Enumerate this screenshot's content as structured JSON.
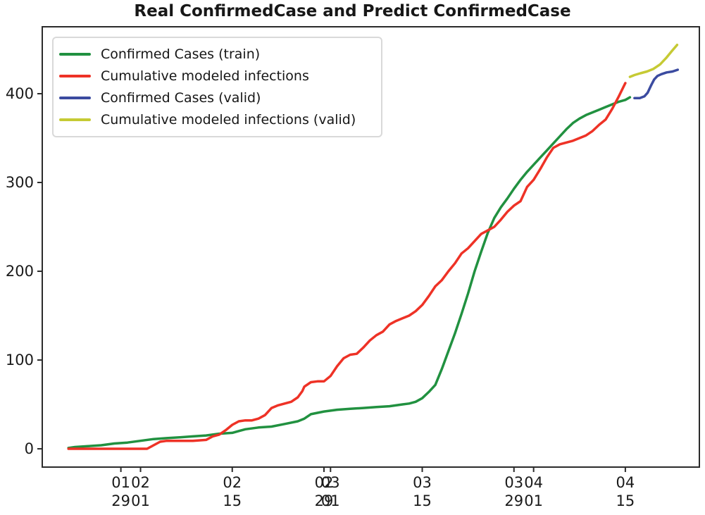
{
  "figure": {
    "background": "#ffffff",
    "frame_color": "#2b2b2b",
    "text_color": "#1a1a1a"
  },
  "chart_data": {
    "type": "line",
    "title": "Real ConfirmedCase and Predict ConfirmedCase",
    "xlabel": "",
    "ylabel": "",
    "x_unit": "days (x tick labels show month over day)",
    "grid": false,
    "legend_position": "upper left",
    "xlim": [
      -5,
      95.3
    ],
    "ylim": [
      -20.6,
      475.4
    ],
    "y_ticks": [
      0,
      100,
      200,
      300,
      400
    ],
    "x_ticks": [
      {
        "day": 7,
        "line1": "01",
        "line2": "29"
      },
      {
        "day": 10,
        "line1": "02",
        "line2": "01"
      },
      {
        "day": 24,
        "line1": "02",
        "line2": "15"
      },
      {
        "day": 38,
        "line1": "02",
        "line2": "29"
      },
      {
        "day": 39,
        "line1": "03",
        "line2": "01"
      },
      {
        "day": 53,
        "line1": "03",
        "line2": "15"
      },
      {
        "day": 67,
        "line1": "03",
        "line2": "29"
      },
      {
        "day": 70,
        "line1": "04",
        "line2": "01"
      },
      {
        "day": 84,
        "line1": "04",
        "line2": "15"
      }
    ],
    "series": [
      {
        "name": "Confirmed Cases (train)",
        "color": "#219140",
        "points": [
          [
            -1,
            1
          ],
          [
            0,
            2
          ],
          [
            2,
            3
          ],
          [
            4,
            4
          ],
          [
            6,
            6
          ],
          [
            8,
            7
          ],
          [
            10,
            9
          ],
          [
            12,
            11
          ],
          [
            14,
            12
          ],
          [
            16,
            13
          ],
          [
            18,
            14
          ],
          [
            20,
            15
          ],
          [
            22,
            17
          ],
          [
            24,
            18
          ],
          [
            25,
            20
          ],
          [
            26,
            22
          ],
          [
            28,
            24
          ],
          [
            30,
            25
          ],
          [
            32,
            28
          ],
          [
            34,
            31
          ],
          [
            35,
            34
          ],
          [
            36,
            39
          ],
          [
            38,
            42
          ],
          [
            40,
            44
          ],
          [
            42,
            45
          ],
          [
            44,
            46
          ],
          [
            46,
            47
          ],
          [
            48,
            48
          ],
          [
            50,
            50
          ],
          [
            51,
            51
          ],
          [
            52,
            53
          ],
          [
            53,
            57
          ],
          [
            54,
            64
          ],
          [
            55,
            72
          ],
          [
            56,
            90
          ],
          [
            57,
            110
          ],
          [
            58,
            130
          ],
          [
            59,
            152
          ],
          [
            60,
            175
          ],
          [
            61,
            200
          ],
          [
            62,
            222
          ],
          [
            63,
            243
          ],
          [
            64,
            260
          ],
          [
            65,
            272
          ],
          [
            66,
            282
          ],
          [
            67,
            293
          ],
          [
            68,
            303
          ],
          [
            69,
            312
          ],
          [
            70,
            320
          ],
          [
            71,
            328
          ],
          [
            72,
            336
          ],
          [
            73,
            344
          ],
          [
            74,
            352
          ],
          [
            75,
            360
          ],
          [
            76,
            367
          ],
          [
            77,
            372
          ],
          [
            78,
            376
          ],
          [
            79,
            379
          ],
          [
            80,
            382
          ],
          [
            81,
            385
          ],
          [
            82,
            388
          ],
          [
            83,
            391
          ],
          [
            84,
            393
          ],
          [
            84.7,
            396
          ]
        ]
      },
      {
        "name": "Cumulative modeled infections",
        "color": "#ee3226",
        "points": [
          [
            -1,
            0
          ],
          [
            2,
            0
          ],
          [
            5,
            0
          ],
          [
            8,
            0
          ],
          [
            11,
            0
          ],
          [
            12,
            4
          ],
          [
            13,
            8
          ],
          [
            14,
            9
          ],
          [
            16,
            9
          ],
          [
            18,
            9
          ],
          [
            20,
            10
          ],
          [
            21,
            14
          ],
          [
            22,
            16
          ],
          [
            23,
            21
          ],
          [
            24,
            27
          ],
          [
            25,
            31
          ],
          [
            26,
            32
          ],
          [
            27,
            32
          ],
          [
            28,
            34
          ],
          [
            29,
            38
          ],
          [
            30,
            46
          ],
          [
            31,
            49
          ],
          [
            32,
            51
          ],
          [
            33,
            53
          ],
          [
            34,
            58
          ],
          [
            34.7,
            65
          ],
          [
            35,
            70
          ],
          [
            36,
            75
          ],
          [
            37,
            76
          ],
          [
            38,
            76
          ],
          [
            39,
            82
          ],
          [
            40,
            93
          ],
          [
            41,
            102
          ],
          [
            42,
            106
          ],
          [
            43,
            107
          ],
          [
            44,
            114
          ],
          [
            45,
            122
          ],
          [
            46,
            128
          ],
          [
            47,
            132
          ],
          [
            48,
            140
          ],
          [
            49,
            144
          ],
          [
            50,
            147
          ],
          [
            51,
            150
          ],
          [
            52,
            155
          ],
          [
            53,
            162
          ],
          [
            54,
            172
          ],
          [
            55,
            183
          ],
          [
            56,
            190
          ],
          [
            57,
            200
          ],
          [
            58,
            209
          ],
          [
            59,
            220
          ],
          [
            60,
            226
          ],
          [
            61,
            234
          ],
          [
            62,
            242
          ],
          [
            63,
            246
          ],
          [
            64,
            250
          ],
          [
            65,
            258
          ],
          [
            66,
            267
          ],
          [
            67,
            274
          ],
          [
            68,
            279
          ],
          [
            69,
            295
          ],
          [
            70,
            303
          ],
          [
            71,
            315
          ],
          [
            72,
            328
          ],
          [
            73,
            339
          ],
          [
            74,
            343
          ],
          [
            75,
            345
          ],
          [
            76,
            347
          ],
          [
            77,
            350
          ],
          [
            78,
            353
          ],
          [
            79,
            358
          ],
          [
            80,
            365
          ],
          [
            81,
            371
          ],
          [
            82,
            383
          ],
          [
            83,
            397
          ],
          [
            84,
            412
          ]
        ]
      },
      {
        "name": "Confirmed Cases (valid)",
        "color": "#3b4ba0",
        "points": [
          [
            85.4,
            395
          ],
          [
            86.2,
            395
          ],
          [
            86.9,
            397
          ],
          [
            87.4,
            401
          ],
          [
            87.9,
            409
          ],
          [
            88.4,
            416
          ],
          [
            88.9,
            420
          ],
          [
            89.5,
            422
          ],
          [
            90.3,
            424
          ],
          [
            91.2,
            425
          ],
          [
            92,
            427
          ]
        ]
      },
      {
        "name": "Cumulative modeled infections (valid)",
        "color": "#c6ca34",
        "points": [
          [
            84.7,
            419
          ],
          [
            85.4,
            421
          ],
          [
            86.3,
            423
          ],
          [
            87.3,
            425
          ],
          [
            88.3,
            428
          ],
          [
            89.3,
            433
          ],
          [
            90.2,
            440
          ],
          [
            91.1,
            448
          ],
          [
            91.9,
            455
          ]
        ]
      }
    ]
  }
}
